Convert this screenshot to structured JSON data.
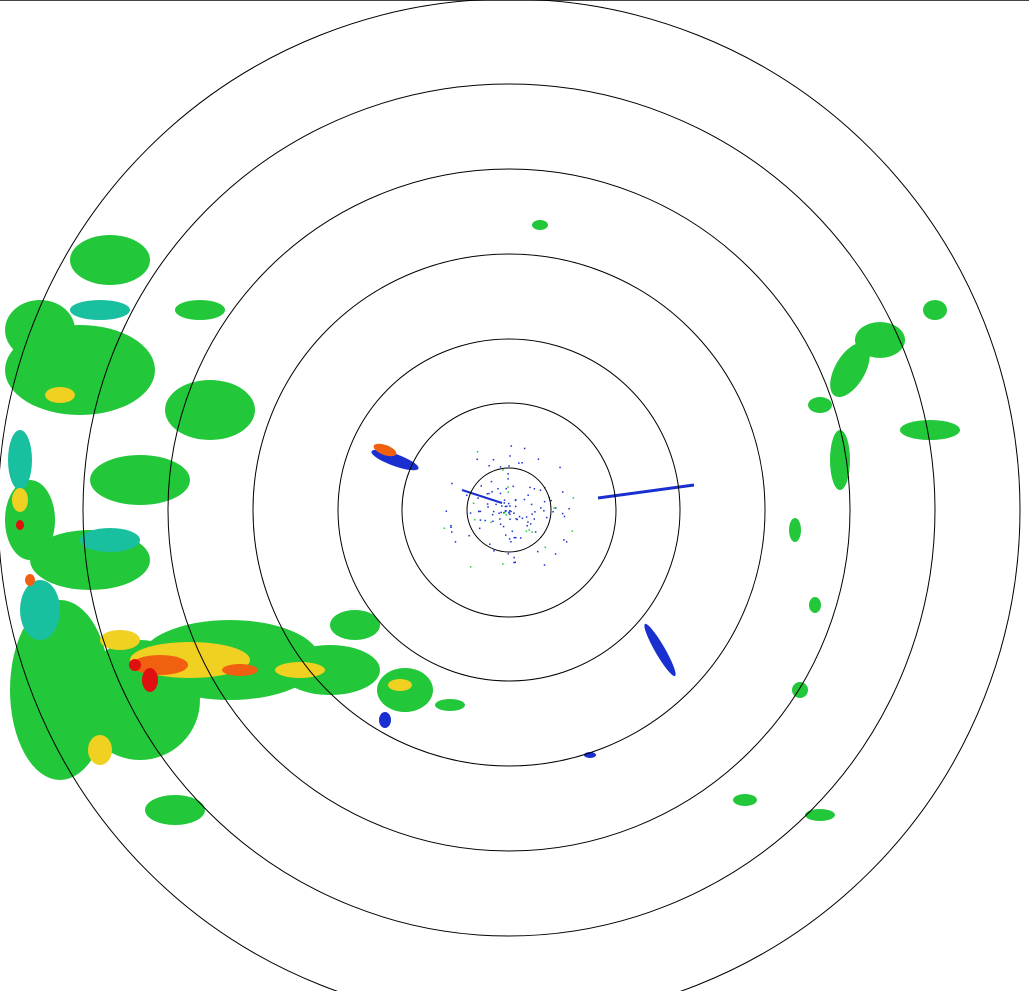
{
  "radar": {
    "ring_color": "#000000",
    "background": "#ffffff",
    "echo_palette": {
      "weak": "#1a2fd0",
      "light": "#19c0a0",
      "moderate": "#22c83a",
      "heavy": "#f0d020",
      "intense": "#f06010",
      "extreme": "#e01010"
    }
  }
}
